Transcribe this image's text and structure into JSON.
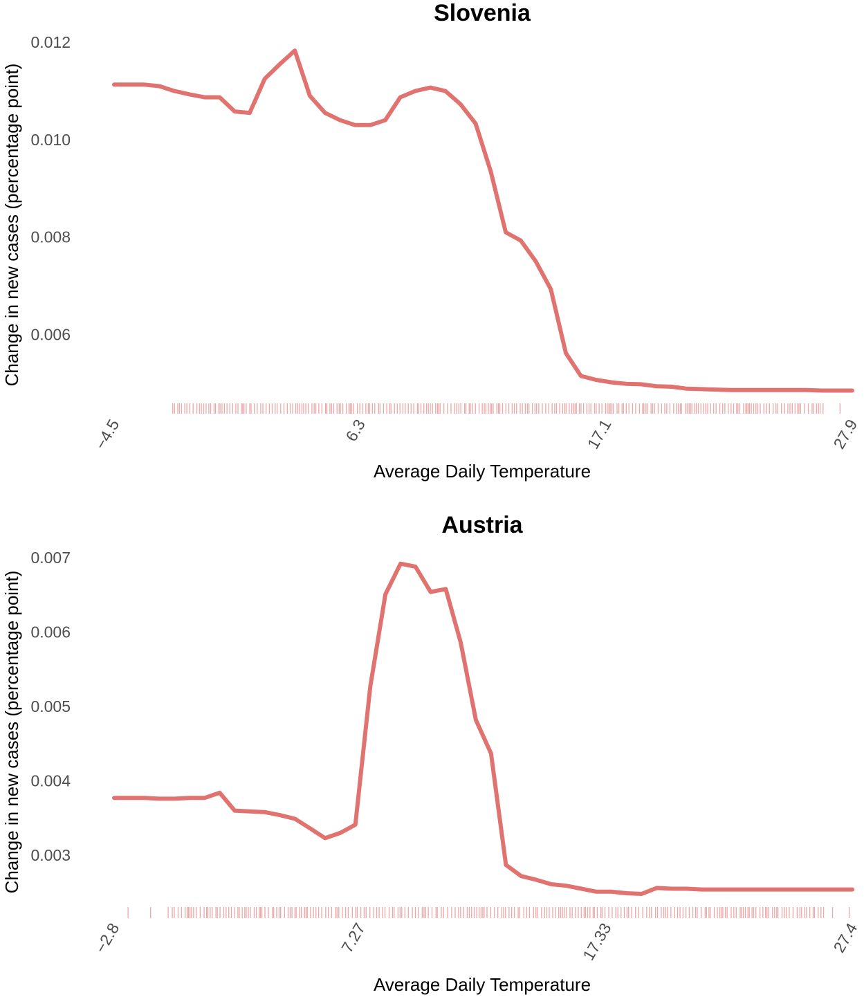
{
  "colors": {
    "line": "#e0736f",
    "rug": "#d9605c",
    "background": "#ffffff"
  },
  "chart_data": [
    {
      "type": "line",
      "title": "Slovenia",
      "xlabel": "Average Daily Temperature",
      "ylabel": "Change in new cases (percentage point)",
      "xlim": [
        -4.5,
        27.9
      ],
      "x_ticks": [
        "−4.5",
        "6.3",
        "17.1",
        "27.9"
      ],
      "x_tick_values": [
        -4.5,
        6.3,
        17.1,
        27.9
      ],
      "ylim": [
        0.00463,
        0.0122
      ],
      "y_ticks": [
        "0.006",
        "0.008",
        "0.010",
        "0.012"
      ],
      "y_tick_values": [
        0.006,
        0.008,
        0.01,
        0.012
      ],
      "grid": false,
      "series": [
        {
          "x": [
            -4.5,
            -3.84,
            -3.18,
            -2.52,
            -1.86,
            -1.19,
            -0.53,
            0.13,
            0.79,
            1.45,
            2.11,
            2.77,
            3.43,
            4.09,
            4.76,
            5.42,
            6.08,
            6.74,
            7.4,
            8.06,
            8.72,
            9.38,
            10.04,
            10.7,
            11.37,
            12.03,
            12.69,
            13.35,
            14.01,
            14.67,
            15.33,
            15.99,
            16.65,
            17.31,
            17.97,
            18.63,
            19.29,
            19.96,
            20.62,
            21.28,
            21.94,
            22.6,
            23.26,
            23.92,
            24.58,
            25.24,
            25.9,
            26.56,
            27.22,
            27.9
          ],
          "y": [
            0.01113,
            0.01113,
            0.01113,
            0.0111,
            0.011,
            0.01093,
            0.01087,
            0.01087,
            0.01058,
            0.01055,
            0.01125,
            0.01155,
            0.01183,
            0.0109,
            0.01055,
            0.0104,
            0.0103,
            0.0103,
            0.0104,
            0.01087,
            0.011,
            0.01107,
            0.011,
            0.01073,
            0.01033,
            0.00935,
            0.0081,
            0.00793,
            0.0075,
            0.00693,
            0.00562,
            0.00515,
            0.00507,
            0.00502,
            0.00499,
            0.00498,
            0.00494,
            0.00493,
            0.00489,
            0.00488,
            0.00487,
            0.00486,
            0.00486,
            0.00486,
            0.00486,
            0.00486,
            0.00486,
            0.00485,
            0.00485,
            0.00485
          ]
        }
      ]
    },
    {
      "type": "line",
      "title": "Austria",
      "xlabel": "Average Daily Temperature",
      "ylabel": "Change in new cases (percentage point)",
      "xlim": [
        -2.8,
        27.4
      ],
      "x_ticks": [
        "−2.8",
        "7.27",
        "17.33",
        "27.4"
      ],
      "x_tick_values": [
        -2.8,
        7.27,
        17.33,
        27.4
      ],
      "ylim": [
        0.00235,
        0.00715
      ],
      "y_ticks": [
        "0.003",
        "0.004",
        "0.005",
        "0.006",
        "0.007"
      ],
      "y_tick_values": [
        0.003,
        0.004,
        0.005,
        0.006,
        0.007
      ],
      "grid": false,
      "series": [
        {
          "x": [
            -2.8,
            -2.18,
            -1.57,
            -0.95,
            -0.33,
            0.28,
            0.9,
            1.52,
            2.13,
            2.75,
            3.37,
            3.98,
            4.6,
            5.22,
            5.83,
            6.45,
            7.07,
            7.68,
            8.3,
            8.92,
            9.53,
            10.15,
            10.77,
            11.38,
            12.0,
            12.62,
            13.23,
            13.85,
            14.47,
            15.08,
            15.7,
            16.32,
            16.93,
            17.55,
            18.17,
            18.78,
            19.4,
            20.02,
            20.63,
            21.25,
            21.87,
            22.48,
            23.1,
            23.72,
            24.33,
            24.95,
            25.57,
            26.18,
            26.8,
            27.4
          ],
          "y": [
            0.00377,
            0.00377,
            0.00377,
            0.00376,
            0.00376,
            0.00377,
            0.00377,
            0.00384,
            0.0036,
            0.00359,
            0.00358,
            0.00354,
            0.00349,
            0.00336,
            0.00323,
            0.0033,
            0.00341,
            0.00527,
            0.00651,
            0.00692,
            0.00688,
            0.00654,
            0.00658,
            0.00586,
            0.00482,
            0.00437,
            0.00287,
            0.00272,
            0.00267,
            0.00261,
            0.00259,
            0.00255,
            0.00251,
            0.00251,
            0.00249,
            0.00248,
            0.00256,
            0.00255,
            0.00255,
            0.00254,
            0.00254,
            0.00254,
            0.00254,
            0.00254,
            0.00254,
            0.00254,
            0.00254,
            0.00254,
            0.00254,
            0.00254
          ]
        }
      ]
    }
  ]
}
